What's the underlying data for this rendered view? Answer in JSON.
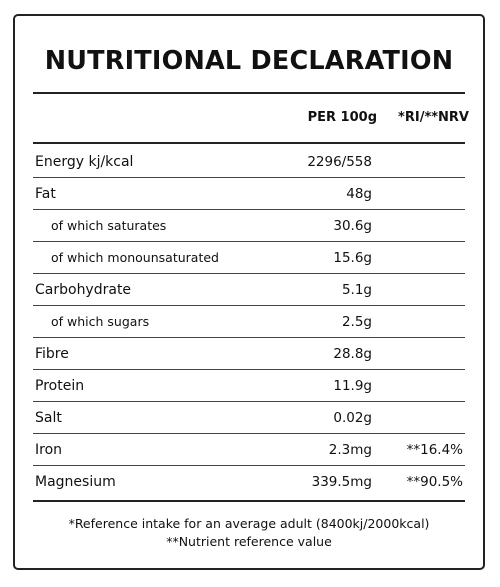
{
  "title": "NUTRITIONAL DECLARATION",
  "header": {
    "per_100g": "PER 100g",
    "ri_nrv": "*RI/**NRV"
  },
  "rows": [
    {
      "name": "Energy kj/kcal",
      "value": "2296/558",
      "ri": ""
    },
    {
      "name": "Fat",
      "value": "48g",
      "ri": ""
    },
    {
      "name": "of which saturates",
      "value": "30.6g",
      "ri": ""
    },
    {
      "name": "of which monounsaturated",
      "value": "15.6g",
      "ri": ""
    },
    {
      "name": "Carbohydrate",
      "value": "5.1g",
      "ri": ""
    },
    {
      "name": "of which sugars",
      "value": "2.5g",
      "ri": ""
    },
    {
      "name": "Fibre",
      "value": "28.8g",
      "ri": ""
    },
    {
      "name": "Protein",
      "value": "11.9g",
      "ri": ""
    },
    {
      "name": "Salt",
      "value": "0.02g",
      "ri": ""
    },
    {
      "name": "Iron",
      "value": "2.3mg",
      "ri": "**16.4%"
    },
    {
      "name": "Magnesium",
      "value": "339.5mg",
      "ri": "**90.5%"
    }
  ],
  "footnotes": {
    "ri": "*Reference intake for an average adult (8400kj/2000kcal)",
    "nrv": "**Nutrient reference value"
  }
}
